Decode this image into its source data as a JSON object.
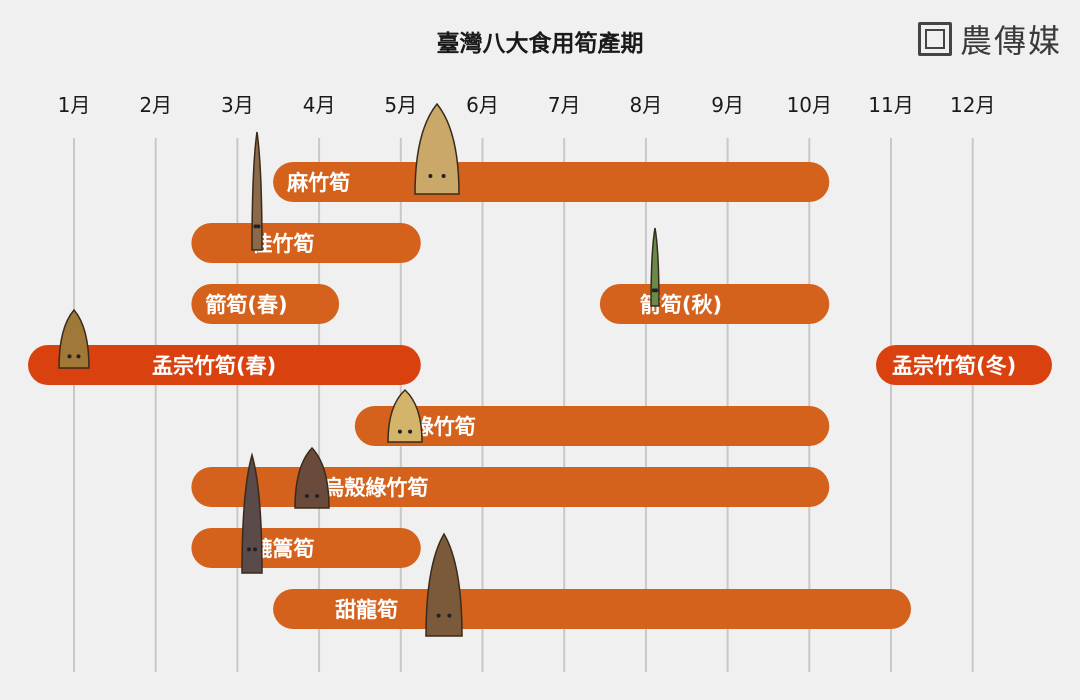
{
  "logo": {
    "text": "農傳媒"
  },
  "chart_data": {
    "type": "gantt",
    "title": "臺灣八大食用筍產期",
    "x_ticks": [
      "1月",
      "2月",
      "3月",
      "4月",
      "5月",
      "6月",
      "7月",
      "8月",
      "9月",
      "10月",
      "11月",
      "12月"
    ],
    "xlim": [
      1,
      12
    ],
    "colors": {
      "bar": "#d4621d",
      "winter_bar": "#d9410f",
      "grid": "#c8c8c8"
    },
    "bars": [
      {
        "name": "麻竹筍",
        "start": 4,
        "end": 10
      },
      {
        "name": "桂竹筍",
        "start": 3,
        "end": 5
      },
      {
        "name": "箭筍(春)",
        "start": 3,
        "end": 4
      },
      {
        "name": "箭筍(秋)",
        "start": 8,
        "end": 10
      },
      {
        "name": "孟宗竹筍(春)",
        "start": 1,
        "end": 5
      },
      {
        "name": "孟宗竹筍(冬)",
        "start": 11,
        "end": 12
      },
      {
        "name": "綠竹筍",
        "start": 5,
        "end": 10
      },
      {
        "name": "烏殼綠竹筍",
        "start": 3,
        "end": 10
      },
      {
        "name": "轆篙筍",
        "start": 3,
        "end": 5
      },
      {
        "name": "甜龍筍",
        "start": 4,
        "end": 11
      }
    ]
  }
}
